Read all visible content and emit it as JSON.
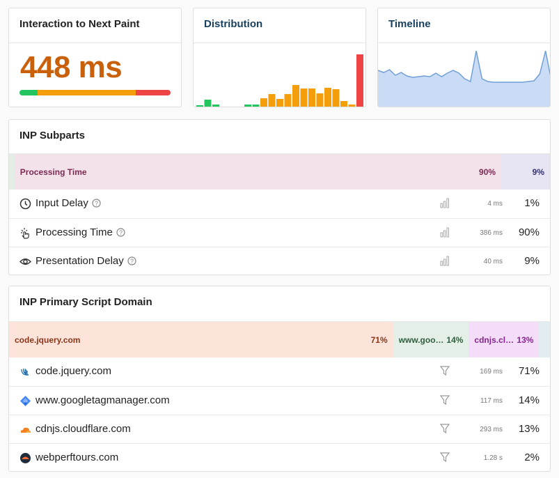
{
  "inp_card": {
    "title": "Interaction to Next Paint",
    "value": "448 ms"
  },
  "distribution": {
    "title": "Distribution",
    "values": [
      4,
      12,
      5,
      2,
      1,
      1,
      5,
      5,
      14,
      20,
      13,
      20,
      33,
      28,
      28,
      21,
      29,
      27,
      10,
      5,
      77
    ],
    "colors": [
      "#22c55e",
      "#22c55e",
      "#22c55e",
      "#22c55e",
      "#22c55e",
      "#22c55e",
      "#22c55e",
      "#22c55e",
      "#f59e0b",
      "#f59e0b",
      "#f59e0b",
      "#f59e0b",
      "#f59e0b",
      "#f59e0b",
      "#f59e0b",
      "#f59e0b",
      "#f59e0b",
      "#f59e0b",
      "#f59e0b",
      "#f59e0b",
      "#ef4444"
    ]
  },
  "timeline": {
    "title": "Timeline",
    "values": [
      54,
      51,
      55,
      47,
      51,
      46,
      44,
      45,
      46,
      45,
      50,
      45,
      50,
      54,
      50,
      42,
      38,
      82,
      42,
      38,
      37,
      37,
      37,
      37,
      37,
      37,
      38,
      39,
      49,
      82,
      40
    ],
    "line_color": "#6f9fd6",
    "fill_color": "#cadcf5"
  },
  "subparts": {
    "title": "INP Subparts",
    "items": [
      {
        "name": "Input Delay",
        "time": "4 ms",
        "share": 1,
        "share_label": "1%",
        "color": "#e3eee7",
        "text_color": "#2f5e3d"
      },
      {
        "name": "Processing Time",
        "time": "386 ms",
        "share": 90,
        "share_label": "90%",
        "color": "#f3e2ea",
        "text_color": "#7b2a52"
      },
      {
        "name": "Presentation Delay",
        "time": "40 ms",
        "share": 9,
        "share_label": "9%",
        "color": "#e6e4f3",
        "text_color": "#33336e"
      }
    ]
  },
  "script_domains": {
    "title": "INP Primary Script Domain",
    "items": [
      {
        "name": "code.jquery.com",
        "time": "169 ms",
        "share": 71,
        "share_label": "71%",
        "color": "#fce4db",
        "text_color": "#8a3517"
      },
      {
        "name": "www.googletagmanager.com",
        "time": "117 ms",
        "share": 14,
        "share_label": "14%",
        "color": "#e4efe7",
        "text_color": "#2f5e3d"
      },
      {
        "name": "cdnjs.cloudflare.com",
        "time": "293 ms",
        "share": 13,
        "share_label": "13%",
        "color": "#f4ddf8",
        "text_color": "#86248f"
      },
      {
        "name": "webperftours.com",
        "time": "1.28 s",
        "share": 2,
        "share_label": "2%",
        "color": "#e1edf0",
        "text_color": "#2f5560"
      }
    ]
  }
}
